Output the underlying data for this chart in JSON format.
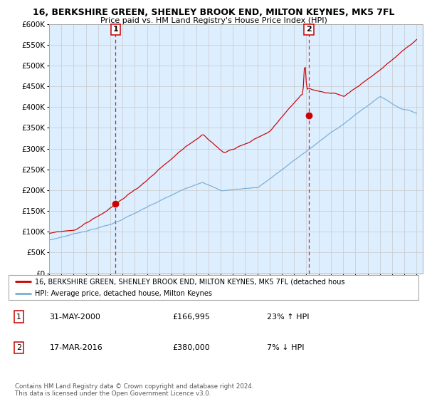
{
  "title_line1": "16, BERKSHIRE GREEN, SHENLEY BROOK END, MILTON KEYNES, MK5 7FL",
  "title_line2": "Price paid vs. HM Land Registry's House Price Index (HPI)",
  "legend_line1": "16, BERKSHIRE GREEN, SHENLEY BROOK END, MILTON KEYNES, MK5 7FL (detached hous",
  "legend_line2": "HPI: Average price, detached house, Milton Keynes",
  "annotation1_date": "31-MAY-2000",
  "annotation1_price": "£166,995",
  "annotation1_hpi": "23% ↑ HPI",
  "annotation2_date": "17-MAR-2016",
  "annotation2_price": "£380,000",
  "annotation2_hpi": "7% ↓ HPI",
  "footer": "Contains HM Land Registry data © Crown copyright and database right 2024.\nThis data is licensed under the Open Government Licence v3.0.",
  "sale1_year": 2000.42,
  "sale1_price": 166995,
  "sale2_year": 2016.21,
  "sale2_price": 380000,
  "ylim_max": 600000,
  "xlim_min": 1995.0,
  "xlim_max": 2025.5,
  "hpi_color": "#7aadd4",
  "property_color": "#cc0000",
  "bg_color": "#ddeeff",
  "grid_color": "#c8c8c8",
  "vline_color": "#cc0000"
}
